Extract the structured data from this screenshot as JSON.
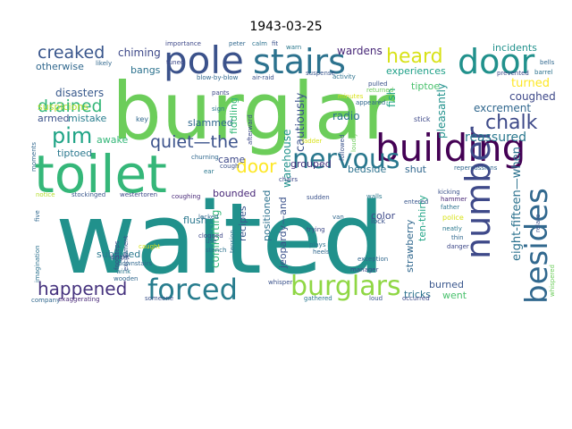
{
  "title": "1943-03-25",
  "words": [
    {
      "text": "waited",
      "color": "#21918c"
    },
    {
      "text": "burglar",
      "color": "#6ccd5a"
    },
    {
      "text": "toilet",
      "color": "#35b779"
    },
    {
      "text": "building",
      "color": "#440154"
    },
    {
      "text": "pole",
      "color": "#3b528b"
    },
    {
      "text": "stairs",
      "color": "#2c728e"
    },
    {
      "text": "door",
      "color": "#21918c"
    },
    {
      "text": "number",
      "color": "#3e4989"
    },
    {
      "text": "besides",
      "color": "#31688e"
    },
    {
      "text": "nervous",
      "color": "#2a788e"
    },
    {
      "text": "forced",
      "color": "#287d8e"
    },
    {
      "text": "burglars",
      "color": "#8fd744"
    },
    {
      "text": "heard",
      "color": "#d8e219"
    },
    {
      "text": "happened",
      "color": "#46337e"
    },
    {
      "text": "pim",
      "color": "#20a486"
    },
    {
      "text": "chalk",
      "color": "#3e4a89"
    },
    {
      "text": "quiet—the",
      "color": "#3b528b"
    },
    {
      "text": "creaked",
      "color": "#39568c"
    },
    {
      "text": "drained",
      "color": "#35b779"
    },
    {
      "text": "door",
      "color": "#fde725"
    },
    {
      "text": "excrement",
      "color": "#31688e"
    },
    {
      "text": "eight-fifteen—when",
      "color": "#2c728e"
    },
    {
      "text": "reassured",
      "color": "#2a788e"
    },
    {
      "text": "coughed",
      "color": "#3e4989"
    },
    {
      "text": "turned",
      "color": "#fde725"
    },
    {
      "text": "incidents",
      "color": "#21918c"
    },
    {
      "text": "experiences",
      "color": "#1fa088"
    },
    {
      "text": "tiptoe",
      "color": "#4ac16d"
    },
    {
      "text": "wardens",
      "color": "#482878"
    },
    {
      "text": "chiming",
      "color": "#3e4989"
    },
    {
      "text": "otherwise",
      "color": "#31688e"
    },
    {
      "text": "bangs",
      "color": "#2c728e"
    },
    {
      "text": "disasters",
      "color": "#38598c"
    },
    {
      "text": "suspicions",
      "color": "#b5de2b"
    },
    {
      "text": "armed",
      "color": "#3b528b"
    },
    {
      "text": "mistake",
      "color": "#287d8e"
    },
    {
      "text": "awake",
      "color": "#35b779"
    },
    {
      "text": "tiptoed",
      "color": "#2a788e"
    },
    {
      "text": "slammed",
      "color": "#31688e"
    },
    {
      "text": "fiddling",
      "color": "#35b779"
    },
    {
      "text": "warehouse",
      "color": "#21918c"
    },
    {
      "text": "cautiously",
      "color": "#3b528b"
    },
    {
      "text": "radio",
      "color": "#2c728e"
    },
    {
      "text": "fish",
      "color": "#20a486"
    },
    {
      "text": "pleasantly",
      "color": "#21918c"
    },
    {
      "text": "came",
      "color": "#3e4989"
    },
    {
      "text": "grouped",
      "color": "#46337e"
    },
    {
      "text": "bedside",
      "color": "#2c728e"
    },
    {
      "text": "shut",
      "color": "#31688e"
    },
    {
      "text": "bounded",
      "color": "#482878"
    },
    {
      "text": "flush",
      "color": "#2a788e"
    },
    {
      "text": "recipes",
      "color": "#39568c"
    },
    {
      "text": "positioned",
      "color": "#2c728e"
    },
    {
      "text": "comforting",
      "color": "#35b779"
    },
    {
      "text": "jeopardy—and",
      "color": "#3b528b"
    },
    {
      "text": "ten-thirty",
      "color": "#20a486"
    },
    {
      "text": "strawberry",
      "color": "#31688e"
    },
    {
      "text": "color",
      "color": "#3e4989"
    },
    {
      "text": "subsided",
      "color": "#2a788e"
    },
    {
      "text": "burned",
      "color": "#39568c"
    },
    {
      "text": "tricks",
      "color": "#2c728e"
    },
    {
      "text": "went",
      "color": "#4ac16d"
    },
    {
      "text": "loudly",
      "color": "#6ccd5a"
    },
    {
      "text": "stick",
      "color": "#3e4989"
    },
    {
      "text": "key",
      "color": "#31688e"
    },
    {
      "text": "lock",
      "color": "#3b528b"
    },
    {
      "text": "police",
      "color": "#d8e219"
    },
    {
      "text": "father",
      "color": "#2c728e"
    },
    {
      "text": "thin",
      "color": "#31688e"
    },
    {
      "text": "danger",
      "color": "#3e4989"
    },
    {
      "text": "hammer",
      "color": "#482878"
    },
    {
      "text": "kicking",
      "color": "#3b528b"
    },
    {
      "text": "neatly",
      "color": "#2a788e"
    },
    {
      "text": "van",
      "color": "#31688e"
    },
    {
      "text": "trying",
      "color": "#3e4989"
    },
    {
      "text": "plays",
      "color": "#2c728e"
    },
    {
      "text": "heels",
      "color": "#31688e"
    },
    {
      "text": "sudden",
      "color": "#3b528b"
    },
    {
      "text": "walls",
      "color": "#2a788e"
    },
    {
      "text": "entered",
      "color": "#39568c"
    },
    {
      "text": "chairs",
      "color": "#3e4989"
    },
    {
      "text": "locked",
      "color": "#31688e"
    },
    {
      "text": "coughing",
      "color": "#482878"
    },
    {
      "text": "stench",
      "color": "#2c728e"
    },
    {
      "text": "manager",
      "color": "#3e4989"
    },
    {
      "text": "exception",
      "color": "#31688e"
    },
    {
      "text": "whisper",
      "color": "#3b528b"
    },
    {
      "text": "gathered",
      "color": "#2a788e"
    },
    {
      "text": "loud",
      "color": "#39568c"
    },
    {
      "text": "occurred",
      "color": "#3e4989"
    },
    {
      "text": "company",
      "color": "#31688e"
    },
    {
      "text": "exaggerating",
      "color": "#482878"
    },
    {
      "text": "someone",
      "color": "#3b528b"
    },
    {
      "text": "imagination",
      "color": "#2c728e"
    },
    {
      "text": "five",
      "color": "#31688e"
    },
    {
      "text": "footsteps",
      "color": "#3e4989"
    },
    {
      "text": "wink",
      "color": "#2a788e"
    },
    {
      "text": "wooden",
      "color": "#31688e"
    },
    {
      "text": "excitement",
      "color": "#3b528b"
    },
    {
      "text": "stockinged",
      "color": "#39568c"
    },
    {
      "text": "westertoren",
      "color": "#3e4989"
    },
    {
      "text": "notice",
      "color": "#b5de2b"
    },
    {
      "text": "caught",
      "color": "#d8e219"
    },
    {
      "text": "importance",
      "color": "#3e4989"
    },
    {
      "text": "peter",
      "color": "#31688e"
    },
    {
      "text": "calm",
      "color": "#2c728e"
    },
    {
      "text": "fit",
      "color": "#3b528b"
    },
    {
      "text": "warn",
      "color": "#2a788e"
    },
    {
      "text": "tuned",
      "color": "#3e4989"
    },
    {
      "text": "blow-by-blow",
      "color": "#31688e"
    },
    {
      "text": "air-raid",
      "color": "#3b528b"
    },
    {
      "text": "suspense",
      "color": "#39568c"
    },
    {
      "text": "activity",
      "color": "#2c728e"
    },
    {
      "text": "likely",
      "color": "#31688e"
    },
    {
      "text": "pants",
      "color": "#3e4989"
    },
    {
      "text": "sign",
      "color": "#2a788e"
    },
    {
      "text": "minutes",
      "color": "#d8e219"
    },
    {
      "text": "appeared",
      "color": "#31688e"
    },
    {
      "text": "pulled",
      "color": "#3b528b"
    },
    {
      "text": "returned",
      "color": "#6ccd5a"
    },
    {
      "text": "prevented",
      "color": "#3e4989"
    },
    {
      "text": "bells",
      "color": "#31688e"
    },
    {
      "text": "barrel",
      "color": "#2c728e"
    },
    {
      "text": "followed",
      "color": "#3b528b"
    },
    {
      "text": "ladder",
      "color": "#d8e219"
    },
    {
      "text": "repercussions",
      "color": "#31688e"
    },
    {
      "text": "afterward",
      "color": "#3e4989"
    },
    {
      "text": "churning",
      "color": "#31688e"
    },
    {
      "text": "cough",
      "color": "#3b528b"
    },
    {
      "text": "ear",
      "color": "#2a788e"
    },
    {
      "text": "clogged",
      "color": "#3e4989"
    },
    {
      "text": "use",
      "color": "#31688e"
    },
    {
      "text": "tension",
      "color": "#2c728e"
    },
    {
      "text": "relate",
      "color": "#3b528b"
    },
    {
      "text": "whispered",
      "color": "#6ccd5a"
    },
    {
      "text": "moments",
      "color": "#31688e"
    },
    {
      "text": "bright",
      "color": "#3e4989"
    },
    {
      "text": "downstairs",
      "color": "#31688e"
    }
  ]
}
